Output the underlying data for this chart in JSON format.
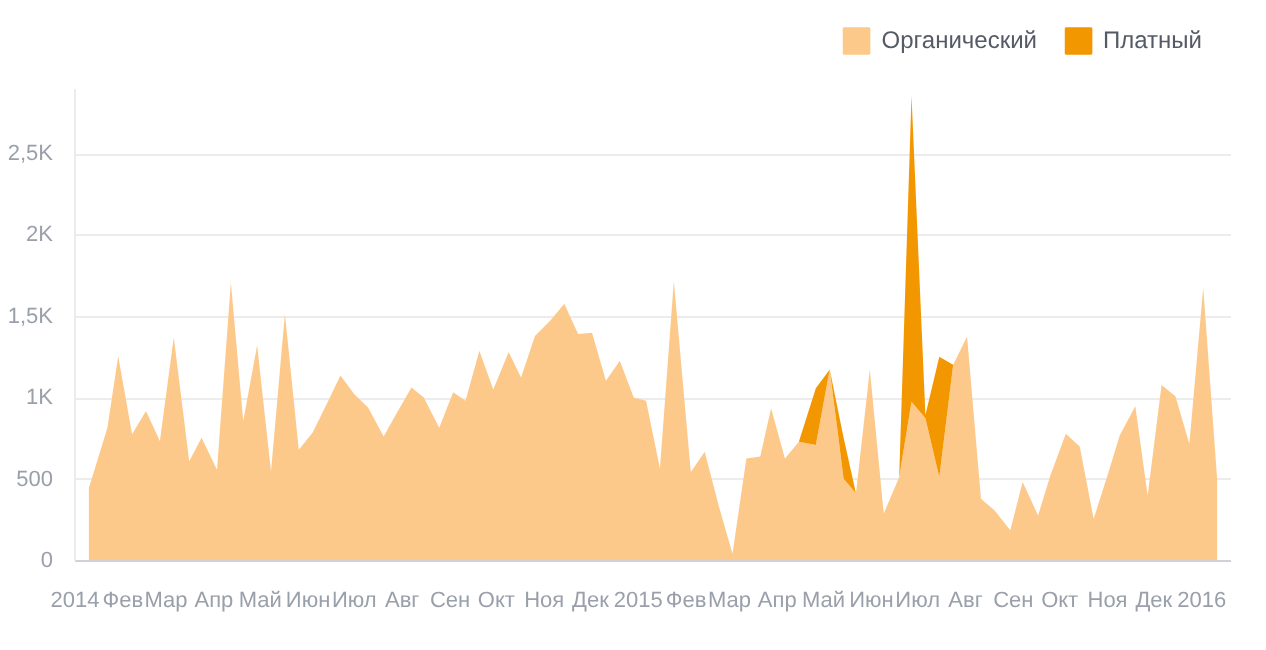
{
  "chart_data": {
    "type": "area",
    "stacked": true,
    "x": [
      "2014-01-10",
      "2014-01-22",
      "2014-01-29",
      "2014-02-07",
      "2014-02-16",
      "2014-02-25",
      "2014-03-06",
      "2014-03-16",
      "2014-03-24",
      "2014-04-03",
      "2014-04-12",
      "2014-04-20",
      "2014-04-29",
      "2014-05-08",
      "2014-05-17",
      "2014-05-26",
      "2014-06-04",
      "2014-06-13",
      "2014-06-22",
      "2014-07-01",
      "2014-07-10",
      "2014-07-20",
      "2014-07-28",
      "2014-08-07",
      "2014-08-15",
      "2014-08-25",
      "2014-09-03",
      "2014-09-11",
      "2014-09-20",
      "2014-09-29",
      "2014-10-09",
      "2014-10-17",
      "2014-10-26",
      "2014-11-05",
      "2014-11-14",
      "2014-11-23",
      "2014-12-02",
      "2014-12-11",
      "2014-12-20",
      "2014-12-29",
      "2015-01-06",
      "2015-01-15",
      "2015-01-24",
      "2015-02-04",
      "2015-02-13",
      "2015-02-22",
      "2015-03-03",
      "2015-03-12",
      "2015-03-21",
      "2015-03-28",
      "2015-04-06",
      "2015-04-15",
      "2015-04-26",
      "2015-05-05",
      "2015-05-14",
      "2015-05-22",
      "2015-05-31",
      "2015-06-09",
      "2015-06-19",
      "2015-06-27",
      "2015-07-06",
      "2015-07-15",
      "2015-07-24",
      "2015-08-02",
      "2015-08-11",
      "2015-08-20",
      "2015-08-30",
      "2015-09-07",
      "2015-09-17",
      "2015-09-25",
      "2015-10-05",
      "2015-10-14",
      "2015-10-23",
      "2015-11-01",
      "2015-11-09",
      "2015-11-19",
      "2015-11-27",
      "2015-12-06",
      "2015-12-15",
      "2015-12-24",
      "2016-01-02",
      "2016-01-11"
    ],
    "series": [
      {
        "name": "Органический",
        "color": "#fdc98a",
        "values": [
          449,
          819,
          1259,
          778,
          922,
          737,
          1374,
          613,
          757,
          560,
          1712,
          860,
          1325,
          551,
          1519,
          683,
          790,
          963,
          1140,
          1025,
          942,
          765,
          901,
          1066,
          1004,
          819,
          1037,
          984,
          1292,
          1053,
          1284,
          1128,
          1383,
          1477,
          1580,
          1395,
          1403,
          1107,
          1230,
          1004,
          984,
          568,
          1720,
          547,
          671,
          342,
          45,
          630,
          642,
          938,
          630,
          733,
          712,
          1177,
          506,
          416,
          1177,
          292,
          514,
          979,
          877,
          514,
          1206,
          1379,
          383,
          309,
          189,
          486,
          280,
          527,
          782,
          704,
          259,
          527,
          774,
          951,
          403,
          1082,
          1012,
          720,
          1679,
          506
        ]
      },
      {
        "name": "Платный",
        "color": "#f39700",
        "values": [
          0,
          0,
          0,
          0,
          0,
          0,
          0,
          0,
          0,
          0,
          0,
          0,
          0,
          0,
          0,
          0,
          0,
          0,
          0,
          0,
          0,
          0,
          0,
          0,
          0,
          0,
          0,
          0,
          0,
          0,
          0,
          0,
          0,
          0,
          0,
          0,
          0,
          0,
          0,
          0,
          0,
          0,
          0,
          0,
          0,
          0,
          0,
          0,
          0,
          0,
          0,
          0,
          350,
          0,
          251,
          0,
          0,
          0,
          0,
          1881,
          20,
          741,
          0,
          0,
          0,
          0,
          0,
          0,
          0,
          0,
          0,
          0,
          0,
          0,
          0,
          0,
          0,
          0,
          0,
          0,
          0,
          0
        ]
      }
    ],
    "xlim": [
      "2014-01-01",
      "2016-01-20"
    ],
    "xticks": [
      {
        "value": "2014-01-01",
        "label": "2014"
      },
      {
        "value": "2014-02-01",
        "label": "Фев"
      },
      {
        "value": "2014-03-01",
        "label": "Мар"
      },
      {
        "value": "2014-04-01",
        "label": "Апр"
      },
      {
        "value": "2014-05-01",
        "label": "Май"
      },
      {
        "value": "2014-06-01",
        "label": "Июн"
      },
      {
        "value": "2014-07-01",
        "label": "Июл"
      },
      {
        "value": "2014-08-01",
        "label": "Авг"
      },
      {
        "value": "2014-09-01",
        "label": "Сен"
      },
      {
        "value": "2014-10-01",
        "label": "Окт"
      },
      {
        "value": "2014-11-01",
        "label": "Ноя"
      },
      {
        "value": "2014-12-01",
        "label": "Дек"
      },
      {
        "value": "2015-01-01",
        "label": "2015"
      },
      {
        "value": "2015-02-01",
        "label": "Фев"
      },
      {
        "value": "2015-03-01",
        "label": "Мар"
      },
      {
        "value": "2015-04-01",
        "label": "Апр"
      },
      {
        "value": "2015-05-01",
        "label": "Май"
      },
      {
        "value": "2015-06-01",
        "label": "Июн"
      },
      {
        "value": "2015-07-01",
        "label": "Июл"
      },
      {
        "value": "2015-08-01",
        "label": "Авг"
      },
      {
        "value": "2015-09-01",
        "label": "Сен"
      },
      {
        "value": "2015-10-01",
        "label": "Окт"
      },
      {
        "value": "2015-11-01",
        "label": "Ноя"
      },
      {
        "value": "2015-12-01",
        "label": "Дек"
      },
      {
        "value": "2016-01-01",
        "label": "2016"
      }
    ],
    "ylim": [
      0,
      2900
    ],
    "yticks": [
      0,
      500,
      {
        "value": 1000,
        "label": "1K"
      },
      {
        "value": 1500,
        "label": "1,5K"
      },
      {
        "value": 2000,
        "label": "2K"
      },
      {
        "value": 2500,
        "label": "2,5K"
      }
    ],
    "grid": "y",
    "legend": "top right"
  }
}
